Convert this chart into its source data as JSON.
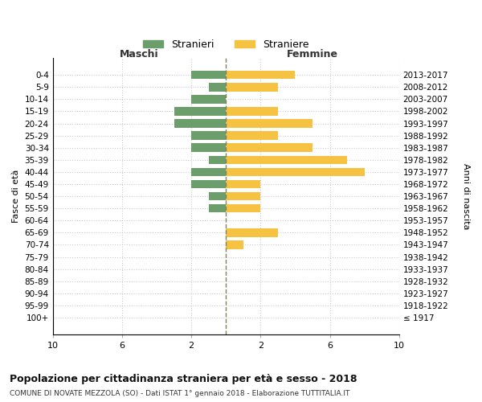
{
  "age_groups": [
    "100+",
    "95-99",
    "90-94",
    "85-89",
    "80-84",
    "75-79",
    "70-74",
    "65-69",
    "60-64",
    "55-59",
    "50-54",
    "45-49",
    "40-44",
    "35-39",
    "30-34",
    "25-29",
    "20-24",
    "15-19",
    "10-14",
    "5-9",
    "0-4"
  ],
  "birth_years": [
    "≤ 1917",
    "1918-1922",
    "1923-1927",
    "1928-1932",
    "1933-1937",
    "1938-1942",
    "1943-1947",
    "1948-1952",
    "1953-1957",
    "1958-1962",
    "1963-1967",
    "1968-1972",
    "1973-1977",
    "1978-1982",
    "1983-1987",
    "1988-1992",
    "1993-1997",
    "1998-2002",
    "2003-2007",
    "2008-2012",
    "2013-2017"
  ],
  "maschi": [
    0,
    0,
    0,
    0,
    0,
    0,
    0,
    0,
    0,
    1,
    1,
    2,
    2,
    1,
    2,
    2,
    3,
    3,
    2,
    1,
    2
  ],
  "femmine": [
    0,
    0,
    0,
    0,
    0,
    0,
    1,
    3,
    0,
    2,
    2,
    2,
    8,
    7,
    5,
    3,
    5,
    3,
    0,
    3,
    4
  ],
  "maschi_color": "#6b9e6b",
  "femmine_color": "#f5c242",
  "center_line_color": "#808060",
  "grid_color": "#cccccc",
  "title": "Popolazione per cittadinanza straniera per età e sesso - 2018",
  "subtitle": "COMUNE DI NOVATE MEZZOLA (SO) - Dati ISTAT 1° gennaio 2018 - Elaborazione TUTTITALIA.IT",
  "xlabel_left": "Maschi",
  "xlabel_right": "Femmine",
  "ylabel_left": "Fasce di età",
  "ylabel_right": "Anni di nascita",
  "legend_maschi": "Stranieri",
  "legend_femmine": "Straniere",
  "background_color": "#ffffff"
}
